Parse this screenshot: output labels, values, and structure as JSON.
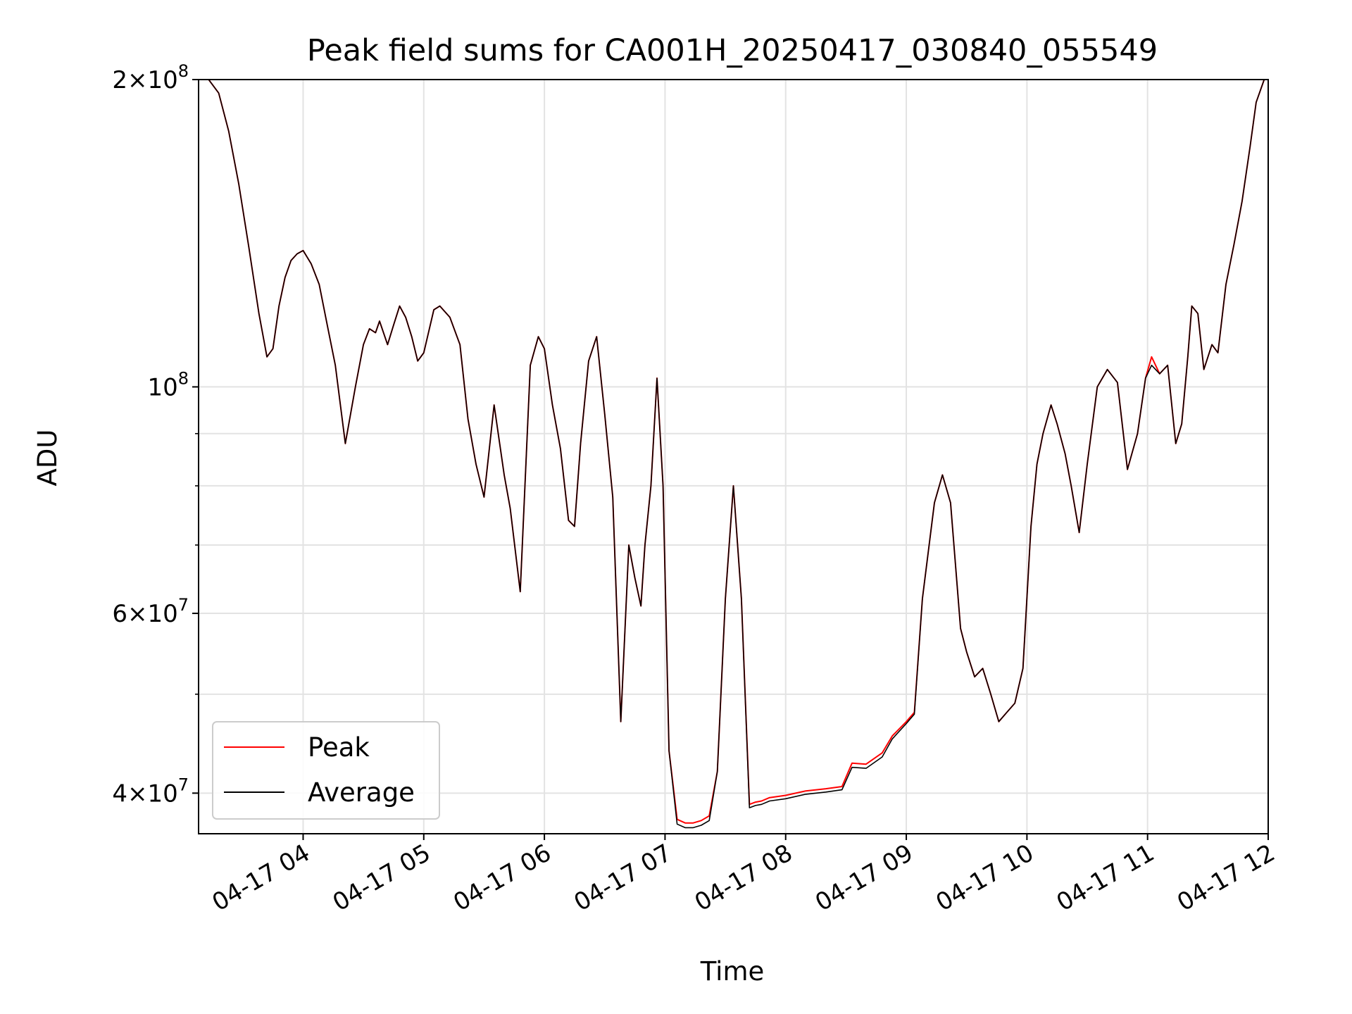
{
  "chart_data": {
    "type": "line",
    "title": "Peak field sums for CA001H_20250417_030840_055549",
    "xlabel": "Time",
    "ylabel": "ADU",
    "yscale": "log",
    "ylim": [
      36500000,
      200000000
    ],
    "xlim": [
      "2025-04-17 03:08",
      "2025-04-17 12:00"
    ],
    "grid": true,
    "legend_position": "lower-left",
    "x_ticks": [
      "04-17 04",
      "04-17 05",
      "04-17 06",
      "04-17 07",
      "04-17 08",
      "04-17 09",
      "04-17 10",
      "04-17 11",
      "04-17 12"
    ],
    "y_major_ticks": [
      {
        "value": 40000000,
        "mantissa": "4",
        "exponent": "7"
      },
      {
        "value": 60000000,
        "mantissa": "6",
        "exponent": "7"
      },
      {
        "value": 100000000,
        "mantissa": "",
        "exponent": "8"
      },
      {
        "value": 200000000,
        "mantissa": "2",
        "exponent": "8"
      }
    ],
    "y_minor_gridlines": [
      50000000,
      70000000,
      80000000,
      90000000
    ],
    "x_time": [
      "03:08",
      "03:13",
      "03:18",
      "03:23",
      "03:28",
      "03:33",
      "03:38",
      "03:42",
      "03:45",
      "03:48",
      "03:51",
      "03:54",
      "03:57",
      "04:00",
      "04:04",
      "04:08",
      "04:12",
      "04:16",
      "04:21",
      "04:26",
      "04:30",
      "04:33",
      "04:36",
      "04:38",
      "04:42",
      "04:45",
      "04:48",
      "04:51",
      "04:54",
      "04:57",
      "05:00",
      "05:05",
      "05:08",
      "05:13",
      "05:18",
      "05:22",
      "05:26",
      "05:30",
      "05:35",
      "05:40",
      "05:43",
      "05:48",
      "05:53",
      "05:57",
      "06:00",
      "06:04",
      "06:08",
      "06:12",
      "06:15",
      "06:18",
      "06:22",
      "06:26",
      "06:30",
      "06:34",
      "06:38",
      "06:42",
      "06:45",
      "06:48",
      "06:50",
      "06:53",
      "06:56",
      "06:59",
      "07:02",
      "07:06",
      "07:10",
      "07:14",
      "07:18",
      "07:22",
      "07:26",
      "07:30",
      "07:34",
      "07:38",
      "07:42",
      "07:45",
      "07:48",
      "07:52",
      "08:00",
      "08:10",
      "08:20",
      "08:28",
      "08:33",
      "08:40",
      "08:48",
      "08:53",
      "09:00",
      "09:04",
      "09:08",
      "09:14",
      "09:18",
      "09:22",
      "09:27",
      "09:30",
      "09:34",
      "09:38",
      "09:42",
      "09:46",
      "09:50",
      "09:54",
      "09:58",
      "10:02",
      "10:05",
      "10:08",
      "10:12",
      "10:15",
      "10:19",
      "10:22",
      "10:26",
      "10:30",
      "10:35",
      "10:40",
      "10:45",
      "10:50",
      "10:55",
      "10:59",
      "11:02",
      "11:06",
      "11:10",
      "11:14",
      "11:17",
      "11:20",
      "11:22",
      "11:25",
      "11:28",
      "11:32",
      "11:35",
      "11:39",
      "11:43",
      "11:47",
      "11:51",
      "11:54",
      "11:58"
    ],
    "series": [
      {
        "name": "Peak",
        "color": "#ff0000",
        "values": [
          200000000,
          200000000,
          194000000,
          178000000,
          158000000,
          137000000,
          118000000,
          107000000,
          109000000,
          120000000,
          128000000,
          133000000,
          135000000,
          136000000,
          132000000,
          126000000,
          115000000,
          105000000,
          88000000,
          100000000,
          110000000,
          114000000,
          113000000,
          116000000,
          110000000,
          115000000,
          120000000,
          117000000,
          112000000,
          106000000,
          108000000,
          119000000,
          120000000,
          117000000,
          110000000,
          93000000,
          84000000,
          78000000,
          96000000,
          82000000,
          76000000,
          63000000,
          105000000,
          112000000,
          109000000,
          96000000,
          87000000,
          74000000,
          73000000,
          88000000,
          106000000,
          112000000,
          94000000,
          78000000,
          47000000,
          70000000,
          65000000,
          61000000,
          70000000,
          80000000,
          102000000,
          80000000,
          44000000,
          37700000,
          37400000,
          37400000,
          37600000,
          38000000,
          42000000,
          62000000,
          80000000,
          62000000,
          39000000,
          39200000,
          39300000,
          39600000,
          39800000,
          40200000,
          40400000,
          40600000,
          42800000,
          42700000,
          43800000,
          45500000,
          47000000,
          48000000,
          62000000,
          77000000,
          82000000,
          77000000,
          58000000,
          55000000,
          52000000,
          53000000,
          50000000,
          47000000,
          48000000,
          49000000,
          53000000,
          73000000,
          84000000,
          90000000,
          96000000,
          92000000,
          86000000,
          80000000,
          72000000,
          84000000,
          100000000,
          104000000,
          101000000,
          83000000,
          90000000,
          102000000,
          107000000,
          103000000,
          105000000,
          88000000,
          92000000,
          107000000,
          120000000,
          118000000,
          104000000,
          110000000,
          108000000,
          126000000,
          138000000,
          152000000,
          172000000,
          190000000,
          200000000
        ]
      },
      {
        "name": "Average",
        "color": "#000000",
        "values": [
          200000000,
          200000000,
          194000000,
          178000000,
          158000000,
          137000000,
          118000000,
          107000000,
          109000000,
          120000000,
          128000000,
          133000000,
          135000000,
          136000000,
          132000000,
          126000000,
          115000000,
          105000000,
          88000000,
          100000000,
          110000000,
          114000000,
          113000000,
          116000000,
          110000000,
          115000000,
          120000000,
          117000000,
          112000000,
          106000000,
          108000000,
          119000000,
          120000000,
          117000000,
          110000000,
          93000000,
          84000000,
          78000000,
          96000000,
          82000000,
          76000000,
          63000000,
          105000000,
          112000000,
          109000000,
          96000000,
          87000000,
          74000000,
          73000000,
          88000000,
          106000000,
          112000000,
          94000000,
          78000000,
          47000000,
          70000000,
          65000000,
          61000000,
          70000000,
          80000000,
          102000000,
          80000000,
          44000000,
          37300000,
          37000000,
          37000000,
          37200000,
          37600000,
          42000000,
          62000000,
          80000000,
          62000000,
          38700000,
          38900000,
          39000000,
          39300000,
          39500000,
          39900000,
          40100000,
          40300000,
          42400000,
          42300000,
          43400000,
          45200000,
          46800000,
          47800000,
          62000000,
          77000000,
          82000000,
          77000000,
          58000000,
          55000000,
          52000000,
          53000000,
          50000000,
          47000000,
          48000000,
          49000000,
          53000000,
          73000000,
          84000000,
          90000000,
          96000000,
          92000000,
          86000000,
          80000000,
          72000000,
          84000000,
          100000000,
          104000000,
          101000000,
          83000000,
          90000000,
          102000000,
          105000000,
          103000000,
          105000000,
          88000000,
          92000000,
          107000000,
          120000000,
          118000000,
          104000000,
          110000000,
          108000000,
          126000000,
          138000000,
          152000000,
          172000000,
          190000000,
          200000000
        ]
      }
    ]
  }
}
